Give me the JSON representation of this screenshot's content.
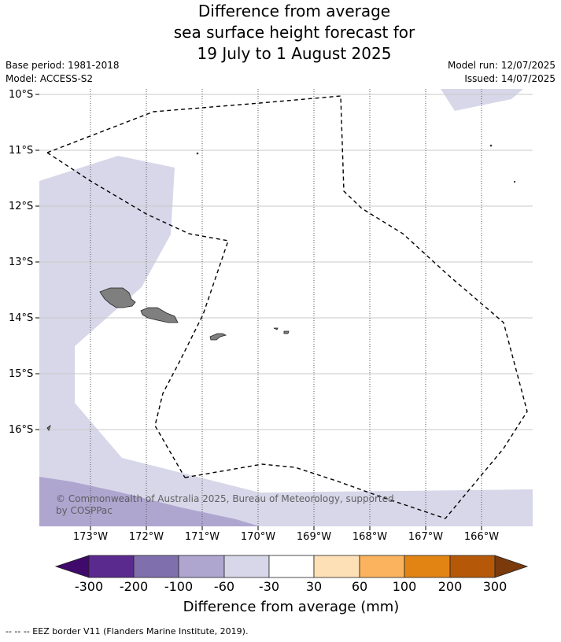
{
  "title": {
    "line1": "Difference from average",
    "line2": "sea surface height forecast for",
    "line3": "19 July to 1 August 2025"
  },
  "meta": {
    "base_period": "Base period: 1981-2018",
    "model": "Model: ACCESS-S2",
    "model_run": "Model run: 12/07/2025",
    "issued": "Issued: 14/07/2025"
  },
  "map": {
    "lon_range": [
      -173.9,
      -165.1
    ],
    "lat_range": [
      -17.7,
      -9.95
    ],
    "lat_labels": [
      "10°S",
      "11°S",
      "12°S",
      "13°S",
      "14°S",
      "15°S",
      "16°S"
    ],
    "lon_labels": [
      "173°W",
      "172°W",
      "171°W",
      "170°W",
      "169°W",
      "168°W",
      "167°W",
      "166°W"
    ],
    "land_color": "#7f7f7f",
    "eez_style": "black dashed line"
  },
  "colorbar": {
    "ticks": [
      "-300",
      "-200",
      "-100",
      "-60",
      "-30",
      "30",
      "60",
      "100",
      "200",
      "300"
    ],
    "colors": [
      "#3f0a6b",
      "#5b2a8e",
      "#7f6fad",
      "#afa6d0",
      "#d7d7e9",
      "#ffffff",
      "#fde0b6",
      "#fbb45d",
      "#e28414",
      "#b55909",
      "#7a3a0c"
    ],
    "title": "Difference from average (mm)"
  },
  "copyright": {
    "line1": "© Commonwealth of Australia 2025, Bureau of Meteorology, supported",
    "line2": "by COSPPac"
  },
  "footnote": "--  --  -- EEZ border V11 (Flanders Marine Institute, 2019)."
}
